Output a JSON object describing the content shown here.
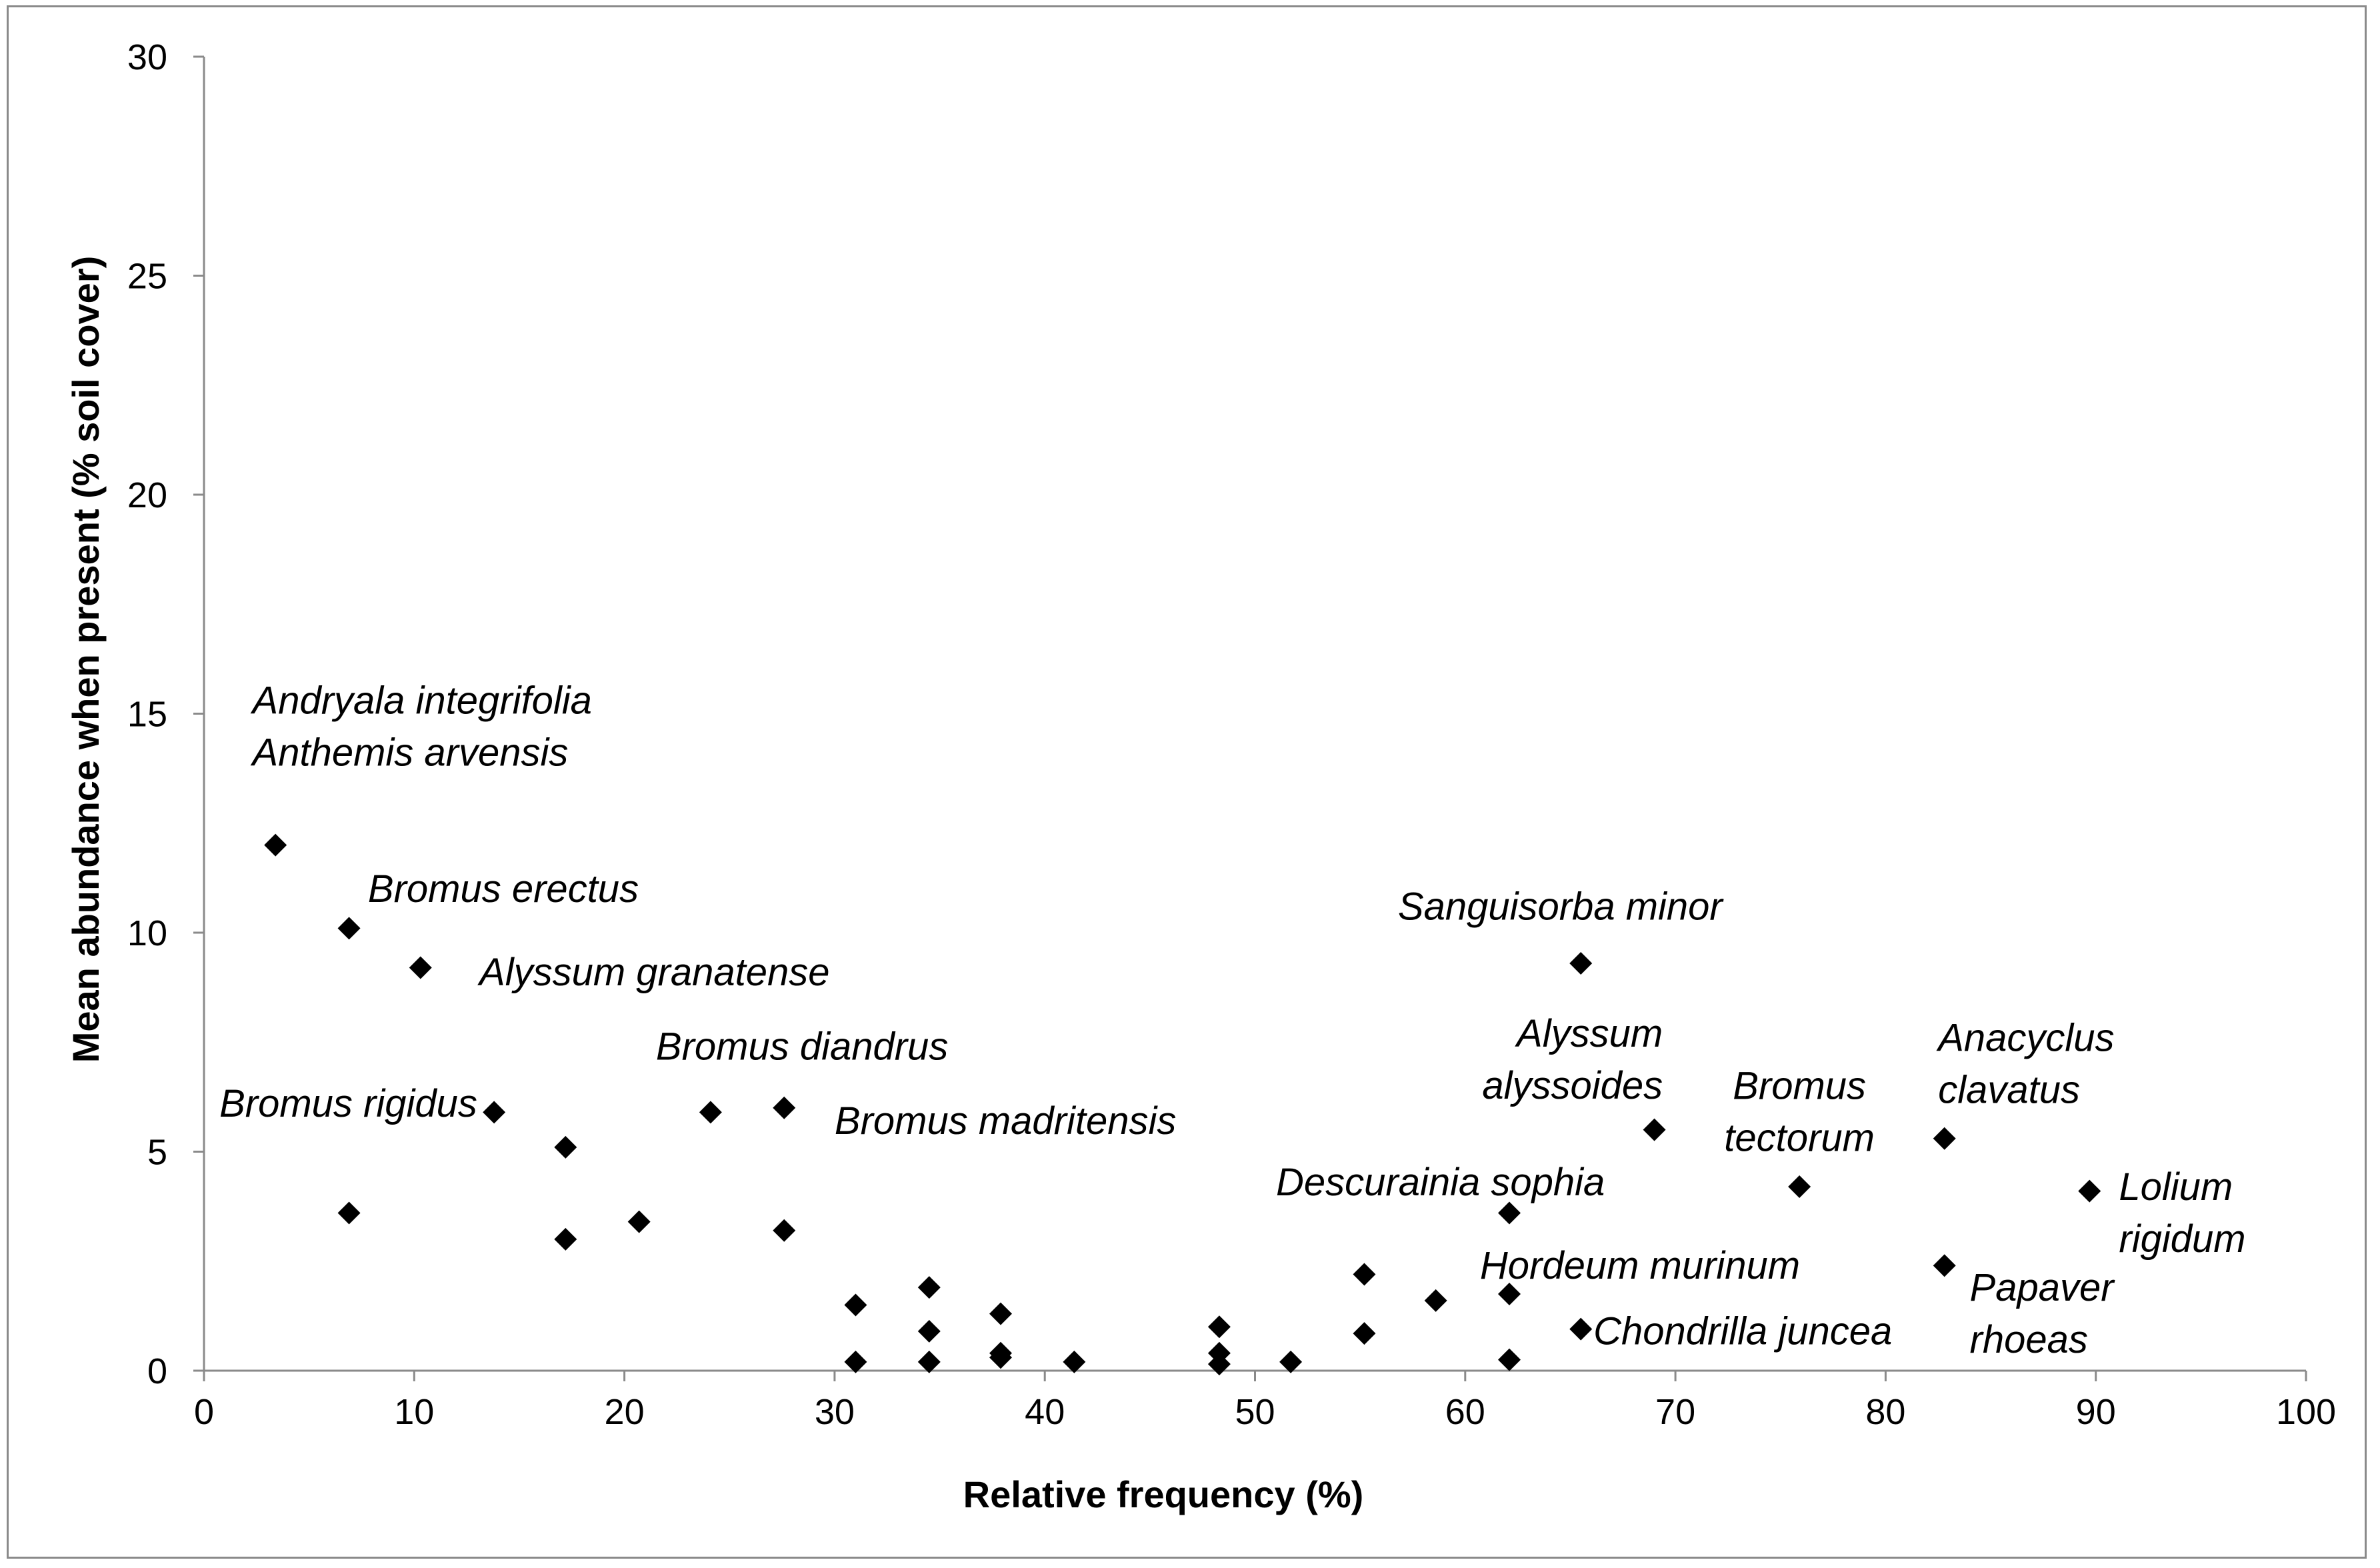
{
  "chart_data": {
    "type": "scatter",
    "title": "",
    "xlabel": "Relative frequency (%)",
    "ylabel": "Mean abundance when present (% soil cover)",
    "xlim": [
      0,
      100
    ],
    "ylim": [
      0,
      30
    ],
    "x_ticks": [
      0,
      10,
      20,
      30,
      40,
      50,
      60,
      70,
      80,
      90,
      100
    ],
    "y_ticks": [
      0,
      5,
      10,
      15,
      20,
      25,
      30
    ],
    "grid": false,
    "legend": "none",
    "marker": "diamond",
    "marker_color": "#000000",
    "points": [
      {
        "x": 3.4,
        "y": 12.0
      },
      {
        "x": 6.9,
        "y": 10.1
      },
      {
        "x": 6.9,
        "y": 3.6
      },
      {
        "x": 10.3,
        "y": 9.2
      },
      {
        "x": 13.8,
        "y": 5.9
      },
      {
        "x": 17.2,
        "y": 5.1
      },
      {
        "x": 17.2,
        "y": 3.0
      },
      {
        "x": 20.7,
        "y": 3.4
      },
      {
        "x": 24.1,
        "y": 5.9
      },
      {
        "x": 27.6,
        "y": 6.0
      },
      {
        "x": 27.6,
        "y": 3.2
      },
      {
        "x": 31.0,
        "y": 1.5
      },
      {
        "x": 31.0,
        "y": 0.2
      },
      {
        "x": 34.5,
        "y": 1.9
      },
      {
        "x": 34.5,
        "y": 0.9
      },
      {
        "x": 34.5,
        "y": 0.2
      },
      {
        "x": 37.9,
        "y": 1.3
      },
      {
        "x": 37.9,
        "y": 0.4
      },
      {
        "x": 37.9,
        "y": 0.3
      },
      {
        "x": 41.4,
        "y": 0.2
      },
      {
        "x": 48.3,
        "y": 1.0
      },
      {
        "x": 48.3,
        "y": 0.4
      },
      {
        "x": 48.3,
        "y": 0.15
      },
      {
        "x": 51.7,
        "y": 0.2
      },
      {
        "x": 55.2,
        "y": 2.2
      },
      {
        "x": 55.2,
        "y": 0.85
      },
      {
        "x": 58.6,
        "y": 1.6
      },
      {
        "x": 62.1,
        "y": 3.6
      },
      {
        "x": 62.1,
        "y": 1.75
      },
      {
        "x": 62.1,
        "y": 0.25
      },
      {
        "x": 65.5,
        "y": 9.3
      },
      {
        "x": 65.5,
        "y": 0.95
      },
      {
        "x": 69.0,
        "y": 5.5
      },
      {
        "x": 75.9,
        "y": 4.2
      },
      {
        "x": 82.8,
        "y": 5.3
      },
      {
        "x": 82.8,
        "y": 2.4
      },
      {
        "x": 89.7,
        "y": 4.1
      }
    ],
    "annotations": [
      {
        "lines": [
          "Andryala integrifolia",
          "Anthemis arvensis"
        ],
        "x": 2.3,
        "y": 15.0,
        "anchor": "start"
      },
      {
        "lines": [
          "Bromus erectus"
        ],
        "x": 7.8,
        "y": 10.7,
        "anchor": "start"
      },
      {
        "lines": [
          "Alyssum granatense"
        ],
        "x": 13.1,
        "y": 8.8,
        "anchor": "start"
      },
      {
        "lines": [
          "Bromus diandrus"
        ],
        "x": 21.5,
        "y": 7.1,
        "anchor": "start"
      },
      {
        "lines": [
          "Bromus rigidus"
        ],
        "x": 13.0,
        "y": 5.8,
        "anchor": "end"
      },
      {
        "lines": [
          "Bromus madritensis"
        ],
        "x": 30.0,
        "y": 5.4,
        "anchor": "start"
      },
      {
        "lines": [
          "Sanguisorba minor"
        ],
        "x": 56.8,
        "y": 10.3,
        "anchor": "start"
      },
      {
        "lines": [
          "Alyssum",
          "alyssoides"
        ],
        "x": 69.4,
        "y": 7.4,
        "anchor": "end"
      },
      {
        "lines": [
          "Bromus",
          "tectorum"
        ],
        "x": 75.9,
        "y": 6.2,
        "anchor": "middle"
      },
      {
        "lines": [
          "Anacyclus",
          "clavatus"
        ],
        "x": 82.5,
        "y": 7.3,
        "anchor": "start"
      },
      {
        "lines": [
          "Descurainia sophia"
        ],
        "x": 51.0,
        "y": 4.0,
        "anchor": "start"
      },
      {
        "lines": [
          "Lolium",
          "rigidum"
        ],
        "x": 91.1,
        "y": 3.9,
        "anchor": "start"
      },
      {
        "lines": [
          "Hordeum murinum"
        ],
        "x": 60.7,
        "y": 2.1,
        "anchor": "start"
      },
      {
        "lines": [
          "Papaver",
          "rhoeas"
        ],
        "x": 84.0,
        "y": 1.6,
        "anchor": "start"
      },
      {
        "lines": [
          "Chondrilla juncea"
        ],
        "x": 66.1,
        "y": 0.6,
        "anchor": "start"
      }
    ]
  }
}
